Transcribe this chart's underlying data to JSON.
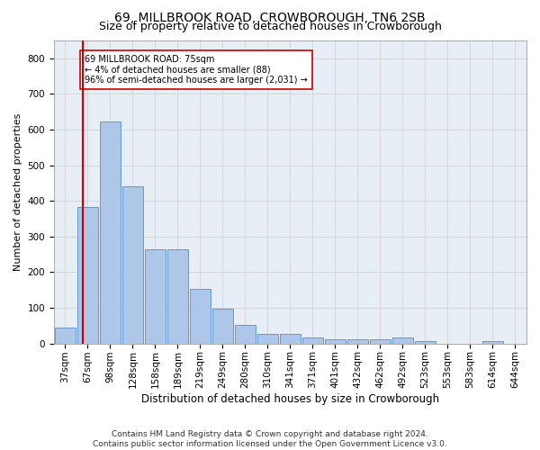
{
  "title": "69, MILLBROOK ROAD, CROWBOROUGH, TN6 2SB",
  "subtitle": "Size of property relative to detached houses in Crowborough",
  "xlabel": "Distribution of detached houses by size in Crowborough",
  "ylabel": "Number of detached properties",
  "categories": [
    "37sqm",
    "67sqm",
    "98sqm",
    "128sqm",
    "158sqm",
    "189sqm",
    "219sqm",
    "249sqm",
    "280sqm",
    "310sqm",
    "341sqm",
    "371sqm",
    "401sqm",
    "432sqm",
    "462sqm",
    "492sqm",
    "523sqm",
    "553sqm",
    "583sqm",
    "614sqm",
    "644sqm"
  ],
  "values": [
    45,
    383,
    622,
    440,
    265,
    265,
    153,
    97,
    52,
    28,
    28,
    17,
    11,
    11,
    11,
    17,
    8,
    0,
    0,
    8,
    0
  ],
  "bar_color": "#aec6e8",
  "bar_edge_color": "#6699cc",
  "property_line_color": "#cc0000",
  "annotation_text": "69 MILLBROOK ROAD: 75sqm\n← 4% of detached houses are smaller (88)\n96% of semi-detached houses are larger (2,031) →",
  "annotation_box_color": "#ffffff",
  "annotation_box_edge_color": "#cc0000",
  "ylim": [
    0,
    850
  ],
  "yticks": [
    0,
    100,
    200,
    300,
    400,
    500,
    600,
    700,
    800
  ],
  "grid_color": "#cccccc",
  "bg_color": "#e8eef5",
  "footer": "Contains HM Land Registry data © Crown copyright and database right 2024.\nContains public sector information licensed under the Open Government Licence v3.0.",
  "title_fontsize": 10,
  "subtitle_fontsize": 9,
  "xlabel_fontsize": 8.5,
  "ylabel_fontsize": 8,
  "tick_fontsize": 7.5,
  "footer_fontsize": 6.5,
  "annot_fontsize": 7
}
